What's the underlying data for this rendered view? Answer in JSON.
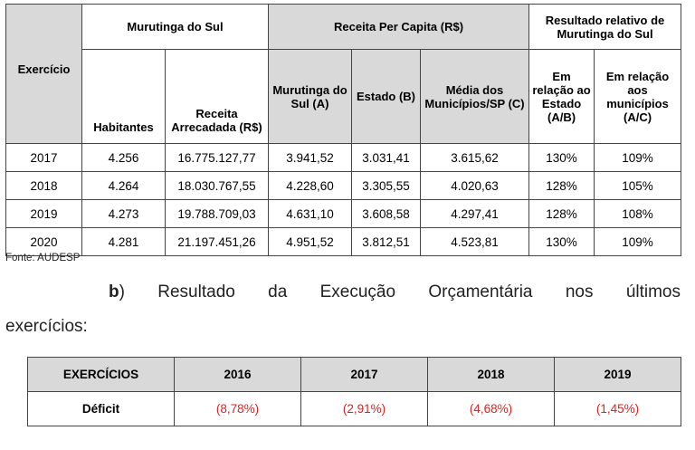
{
  "table1": {
    "col_exercicio": "Exercício",
    "group_municipio": "Murutinga do Sul",
    "group_receita": "Receita Per Capita (R$)",
    "group_resultado": "Resultado relativo de Murutinga do Sul",
    "sub_habitantes": "Habitantes",
    "sub_receita_arrecadada": "Receita Arrecadada (R$)",
    "sub_murutinga": "Murutinga do Sul (A)",
    "sub_estado": "Estado (B)",
    "sub_media": "Média dos Municípios/SP (C)",
    "sub_rel_estado": "Em relação ao Estado (A/B)",
    "sub_rel_municipios": "Em relação aos municípios (A/C)",
    "rows": [
      [
        "2017",
        "4.256",
        "16.775.127,77",
        "3.941,52",
        "3.031,41",
        "3.615,62",
        "130%",
        "109%"
      ],
      [
        "2018",
        "4.264",
        "18.030.767,55",
        "4.228,60",
        "3.305,55",
        "4.020,63",
        "128%",
        "105%"
      ],
      [
        "2019",
        "4.273",
        "19.788.709,03",
        "4.631,10",
        "3.608,58",
        "4.297,41",
        "128%",
        "108%"
      ],
      [
        "2020",
        "4.281",
        "21.197.451,26",
        "4.951,52",
        "3.812,51",
        "4.523,81",
        "130%",
        "109%"
      ]
    ]
  },
  "source": "Fonte: AUDESP",
  "paragraph": {
    "marker": "b",
    "marker_suffix": ")",
    "words": [
      "Resultado",
      "da",
      "Execução",
      "Orçamentária",
      "nos",
      "últimos"
    ],
    "line2": "exercícios:"
  },
  "table2": {
    "header": [
      "EXERCÍCIOS",
      "2016",
      "2017",
      "2018",
      "2019"
    ],
    "row_label": "Déficit",
    "values": [
      "(8,78%)",
      "(2,91%)",
      "(4,68%)",
      "(1,45%)"
    ],
    "value_color": "#e02020",
    "header_bg": "#d9d9d9"
  }
}
